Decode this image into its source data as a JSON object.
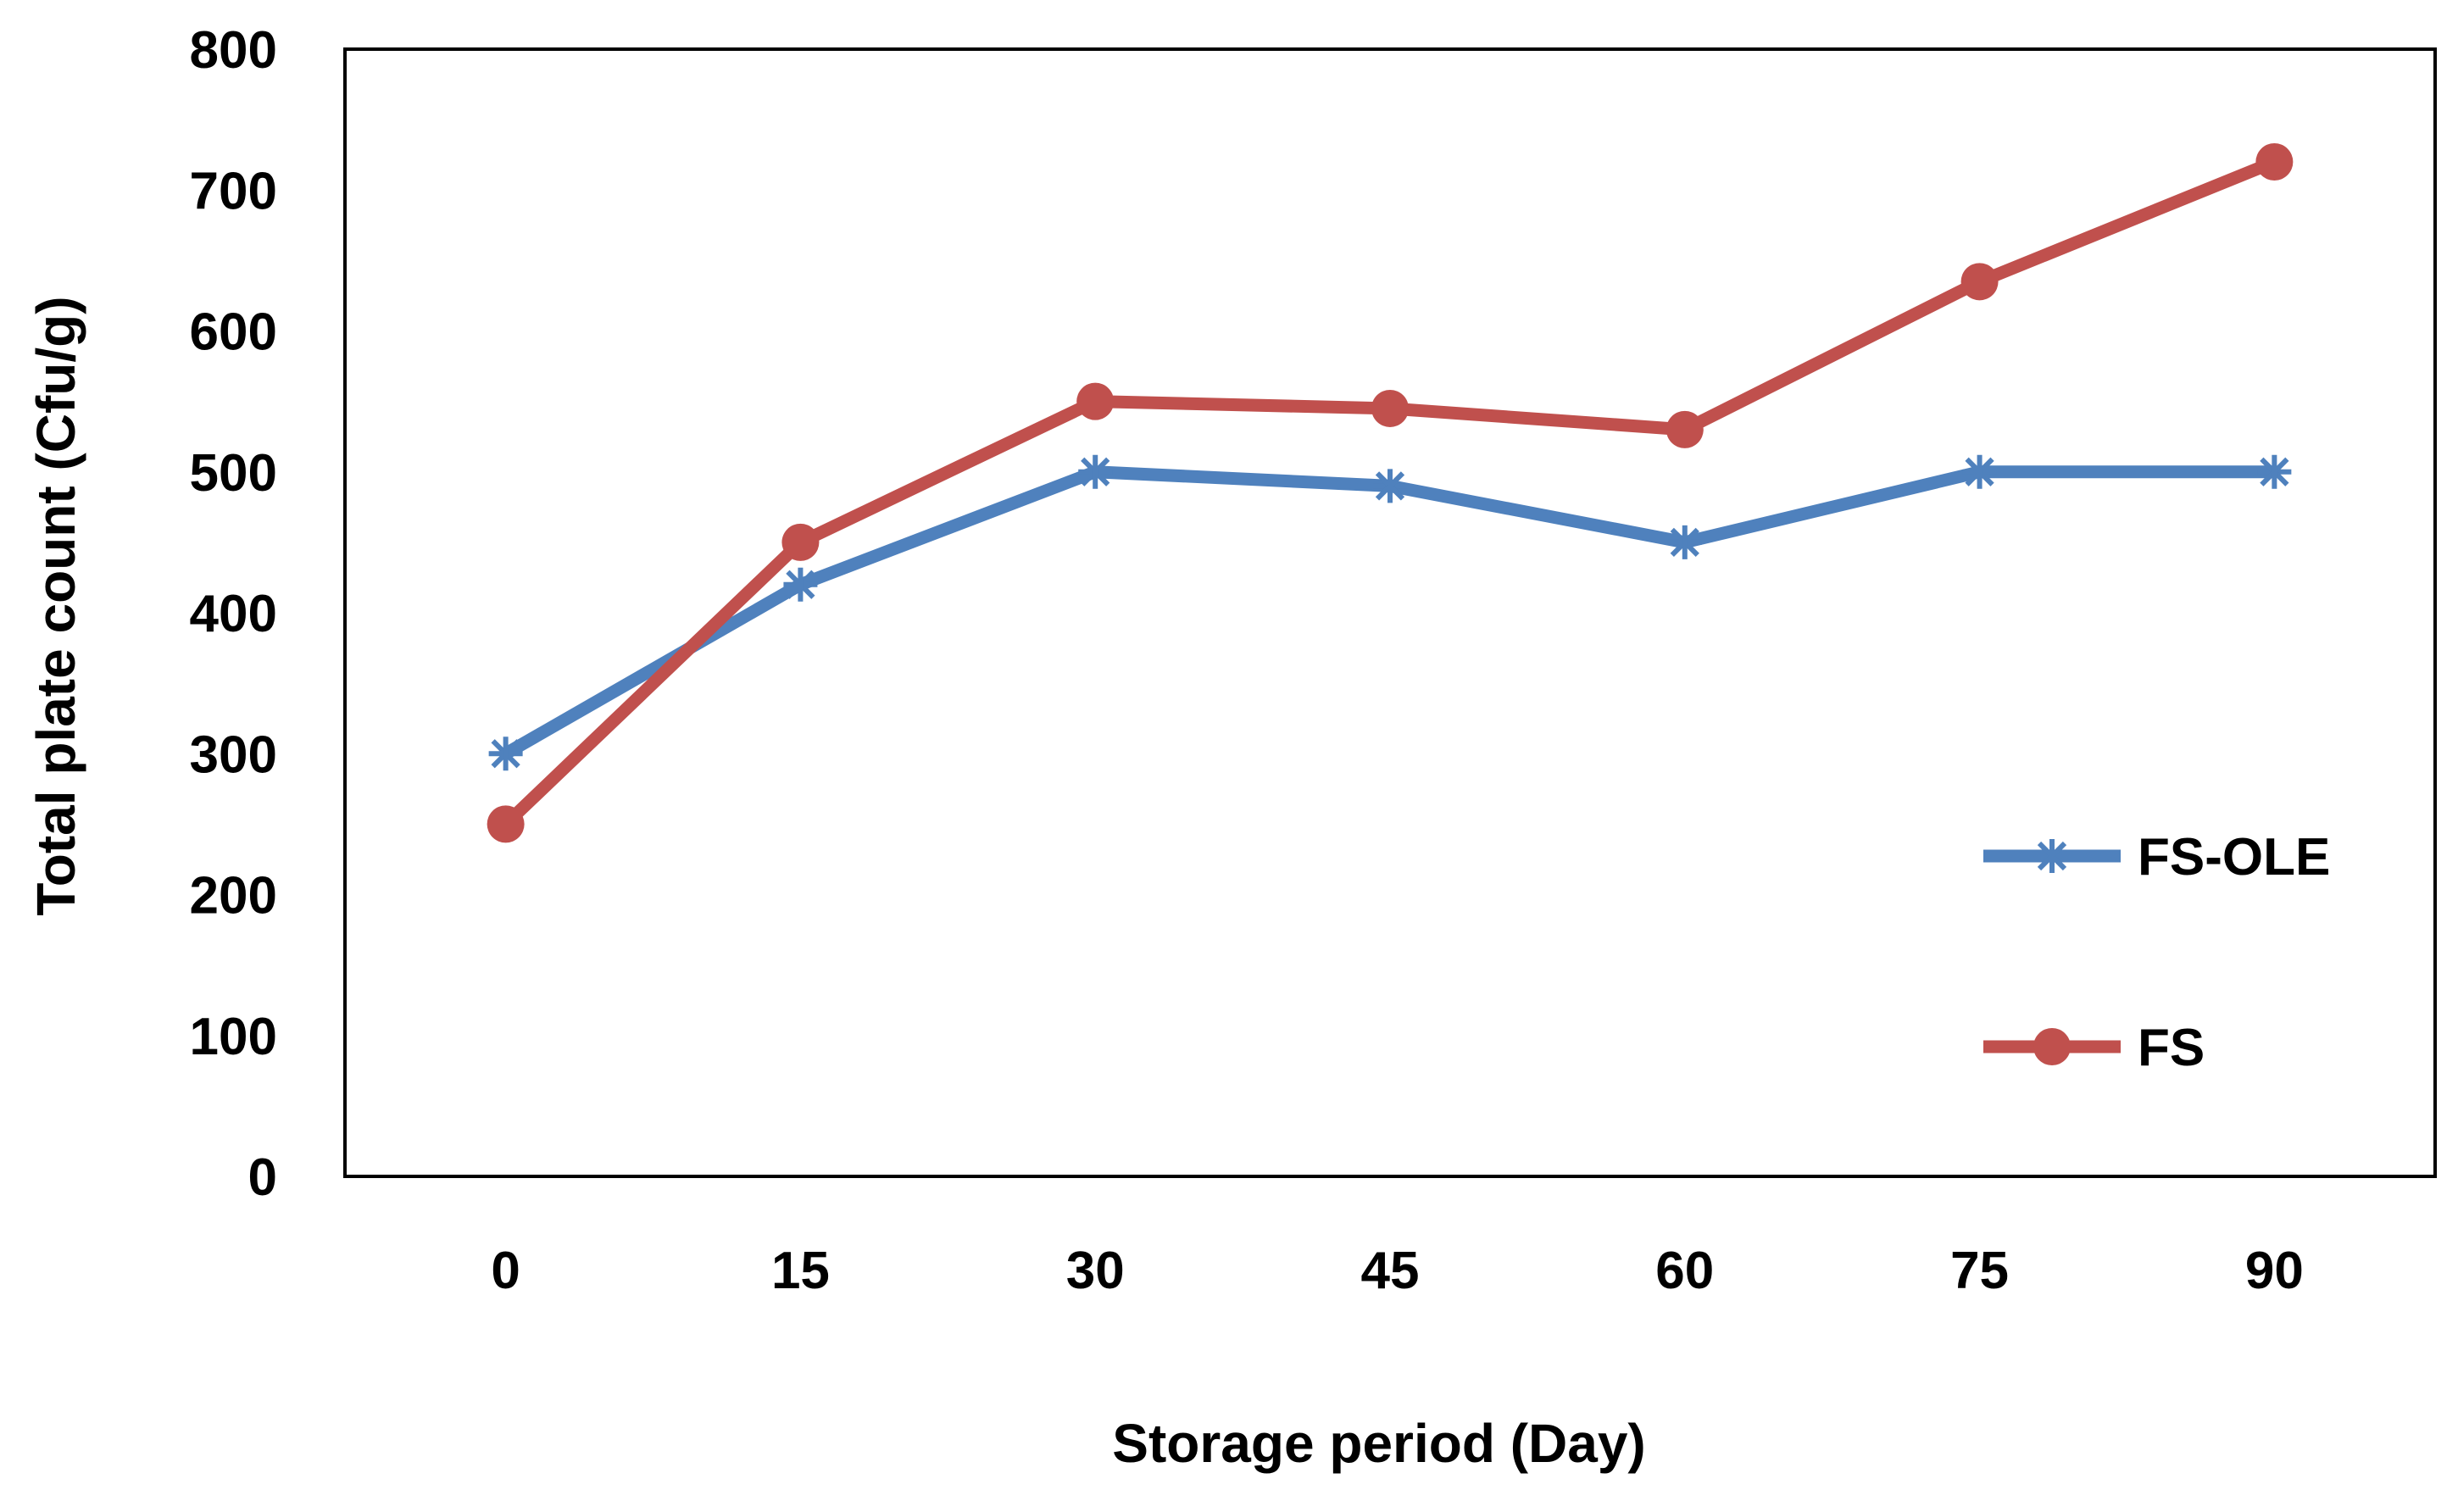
{
  "chart_data": {
    "type": "line",
    "title": "",
    "xlabel": "Storage period (Day)",
    "ylabel": "Total plate count (Cfu/g)",
    "x": [
      0,
      15,
      30,
      45,
      60,
      75,
      90
    ],
    "x_tick_labels": [
      "0",
      "15",
      "30",
      "45",
      "60",
      "75",
      "90"
    ],
    "ylim": [
      0,
      800
    ],
    "y_ticks": [
      0,
      100,
      200,
      300,
      400,
      500,
      600,
      700,
      800
    ],
    "y_tick_labels": [
      "0",
      "100",
      "200",
      "300",
      "400",
      "500",
      "600",
      "700",
      "800"
    ],
    "grid": false,
    "legend_position": "right",
    "series": [
      {
        "name": "FS-OLE",
        "values": [
          300,
          420,
          500,
          490,
          450,
          500,
          500
        ],
        "color": "#4F81BD",
        "marker": "asterisk"
      },
      {
        "name": "FS",
        "values": [
          250,
          450,
          550,
          545,
          530,
          635,
          720
        ],
        "color": "#C0504D",
        "marker": "circle"
      }
    ]
  }
}
